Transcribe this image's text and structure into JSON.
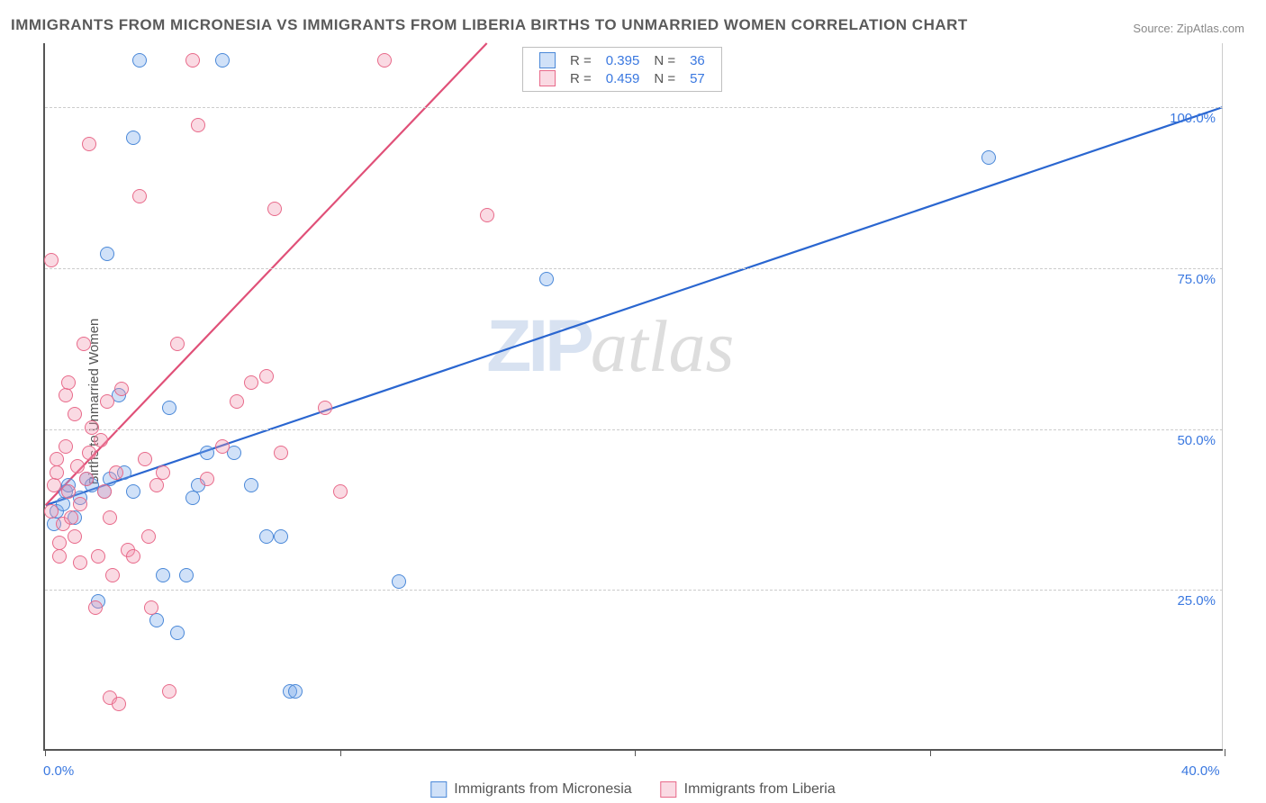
{
  "title": "IMMIGRANTS FROM MICRONESIA VS IMMIGRANTS FROM LIBERIA BIRTHS TO UNMARRIED WOMEN CORRELATION CHART",
  "source_label": "Source:",
  "source_name": "ZipAtlas.com",
  "y_axis_label": "Births to Unmarried Women",
  "watermark_a": "ZIP",
  "watermark_b": "atlas",
  "chart": {
    "type": "scatter",
    "x_range": [
      0,
      40
    ],
    "y_range": [
      0,
      110
    ],
    "x_ticks": [
      0,
      10,
      20,
      30,
      40
    ],
    "x_tick_labels": {
      "0": "0.0%",
      "40": "40.0%"
    },
    "y_ticks": [
      25,
      50,
      75,
      100
    ],
    "y_tick_labels": {
      "25": "25.0%",
      "50": "50.0%",
      "75": "75.0%",
      "100": "100.0%"
    },
    "grid_color": "#cccccc",
    "axis_color": "#555555",
    "background_color": "#ffffff",
    "point_radius": 8,
    "point_border_width": 1.6,
    "series": [
      {
        "key": "micronesia",
        "label": "Immigrants from Micronesia",
        "fill": "rgba(120,170,235,0.35)",
        "stroke": "#4a88d8",
        "trend_color": "#2a66d0",
        "trend_width": 2.2,
        "trend": {
          "x1": 0,
          "y1": 38,
          "x2": 40,
          "y2": 100
        },
        "r_value": "0.395",
        "n_value": "36",
        "points": [
          [
            0.3,
            35
          ],
          [
            0.4,
            37
          ],
          [
            0.6,
            38
          ],
          [
            0.7,
            40
          ],
          [
            0.8,
            41
          ],
          [
            1.0,
            36
          ],
          [
            1.2,
            39
          ],
          [
            1.4,
            42
          ],
          [
            1.6,
            41
          ],
          [
            1.8,
            23
          ],
          [
            2.0,
            40
          ],
          [
            2.1,
            77
          ],
          [
            2.2,
            42
          ],
          [
            2.5,
            55
          ],
          [
            2.7,
            43
          ],
          [
            3.0,
            95
          ],
          [
            3.0,
            40
          ],
          [
            3.2,
            107
          ],
          [
            3.8,
            20
          ],
          [
            4.0,
            27
          ],
          [
            4.2,
            53
          ],
          [
            4.5,
            18
          ],
          [
            4.8,
            27
          ],
          [
            5.0,
            39
          ],
          [
            5.2,
            41
          ],
          [
            5.5,
            46
          ],
          [
            6.0,
            107
          ],
          [
            6.4,
            46
          ],
          [
            7.0,
            41
          ],
          [
            7.5,
            33
          ],
          [
            8.0,
            33
          ],
          [
            8.3,
            9
          ],
          [
            8.5,
            9
          ],
          [
            12.0,
            26
          ],
          [
            17.0,
            73
          ],
          [
            32.0,
            92
          ]
        ]
      },
      {
        "key": "liberia",
        "label": "Immigrants from Liberia",
        "fill": "rgba(240,150,175,0.35)",
        "stroke": "#e86a8a",
        "trend_color": "#e05078",
        "trend_width": 2.2,
        "trend": {
          "x1": 0,
          "y1": 38,
          "x2": 15,
          "y2": 110
        },
        "r_value": "0.459",
        "n_value": "57",
        "points": [
          [
            0.2,
            37
          ],
          [
            0.3,
            41
          ],
          [
            0.4,
            43
          ],
          [
            0.4,
            45
          ],
          [
            0.5,
            30
          ],
          [
            0.5,
            32
          ],
          [
            0.6,
            35
          ],
          [
            0.7,
            47
          ],
          [
            0.7,
            55
          ],
          [
            0.8,
            40
          ],
          [
            0.8,
            57
          ],
          [
            0.9,
            36
          ],
          [
            1.0,
            33
          ],
          [
            1.0,
            52
          ],
          [
            1.1,
            44
          ],
          [
            1.2,
            38
          ],
          [
            1.2,
            29
          ],
          [
            1.3,
            63
          ],
          [
            1.4,
            42
          ],
          [
            1.5,
            46
          ],
          [
            1.5,
            94
          ],
          [
            1.6,
            50
          ],
          [
            1.7,
            22
          ],
          [
            1.8,
            30
          ],
          [
            1.9,
            48
          ],
          [
            2.0,
            40
          ],
          [
            2.1,
            54
          ],
          [
            2.2,
            8
          ],
          [
            2.2,
            36
          ],
          [
            2.3,
            27
          ],
          [
            2.4,
            43
          ],
          [
            2.5,
            7
          ],
          [
            2.6,
            56
          ],
          [
            2.8,
            31
          ],
          [
            3.0,
            30
          ],
          [
            3.2,
            86
          ],
          [
            3.4,
            45
          ],
          [
            3.5,
            33
          ],
          [
            3.6,
            22
          ],
          [
            3.8,
            41
          ],
          [
            4.0,
            43
          ],
          [
            4.2,
            9
          ],
          [
            4.5,
            63
          ],
          [
            5.0,
            107
          ],
          [
            5.2,
            97
          ],
          [
            5.5,
            42
          ],
          [
            6.0,
            47
          ],
          [
            6.5,
            54
          ],
          [
            7.0,
            57
          ],
          [
            7.5,
            58
          ],
          [
            7.8,
            84
          ],
          [
            8.0,
            46
          ],
          [
            9.5,
            53
          ],
          [
            10.0,
            40
          ],
          [
            11.5,
            107
          ],
          [
            15.0,
            83
          ],
          [
            0.2,
            76
          ]
        ]
      }
    ]
  },
  "legend_top": {
    "r_label": "R =",
    "n_label": "N ="
  }
}
